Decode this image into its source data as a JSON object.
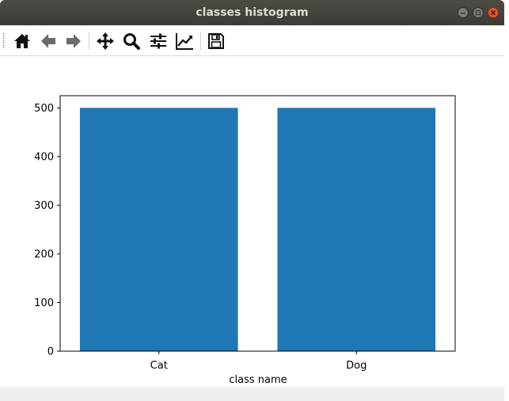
{
  "window": {
    "title": "classes histogram"
  },
  "toolbar": {
    "buttons": [
      {
        "name": "home-button",
        "icon": "home-icon"
      },
      {
        "name": "back-button",
        "icon": "arrow-left-icon"
      },
      {
        "name": "forward-button",
        "icon": "arrow-right-icon"
      },
      {
        "name": "pan-button",
        "icon": "move-icon"
      },
      {
        "name": "zoom-button",
        "icon": "magnifier-icon"
      },
      {
        "name": "subplots-button",
        "icon": "sliders-icon"
      },
      {
        "name": "edit-axis-button",
        "icon": "line-chart-icon"
      },
      {
        "name": "save-button",
        "icon": "floppy-icon"
      }
    ]
  },
  "chart_data": {
    "type": "bar",
    "categories": [
      "Cat",
      "Dog"
    ],
    "values": [
      500,
      500
    ],
    "title": "",
    "xlabel": "class name",
    "ylabel": "",
    "ylim": [
      0,
      525
    ],
    "yticks": [
      0,
      100,
      200,
      300,
      400,
      500
    ],
    "grid": false,
    "bar_color": "#1f77b4"
  }
}
